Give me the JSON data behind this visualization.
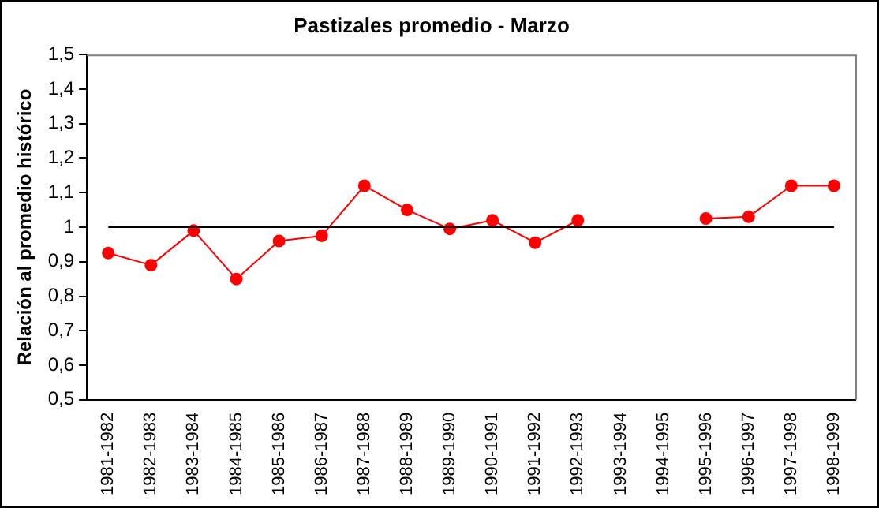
{
  "chart_data": {
    "type": "line",
    "title": "Pastizales promedio - Marzo",
    "ylabel": "Relación al promedio histórico",
    "categories": [
      "1981-1982",
      "1982-1983",
      "1983-1984",
      "1984-1985",
      "1985-1986",
      "1986-1987",
      "1987-1988",
      "1988-1989",
      "1989-1990",
      "1990-1991",
      "1991-1992",
      "1992-1993",
      "1993-1994",
      "1994-1995",
      "1995-1996",
      "1996-1997",
      "1997-1998",
      "1998-1999"
    ],
    "series": [
      {
        "color": "#ff0000",
        "values": [
          0.925,
          0.89,
          0.99,
          0.85,
          0.96,
          0.975,
          1.12,
          1.05,
          0.995,
          1.02,
          0.955,
          1.02,
          null,
          null,
          1.025,
          1.03,
          1.12,
          1.12
        ]
      }
    ],
    "ylim": [
      0.5,
      1.5
    ],
    "yticks": [
      {
        "value": 0.5,
        "label": "0,5"
      },
      {
        "value": 0.6,
        "label": "0,6"
      },
      {
        "value": 0.7,
        "label": "0,7"
      },
      {
        "value": 0.8,
        "label": "0,8"
      },
      {
        "value": 0.9,
        "label": "0,9"
      },
      1,
      {
        "value": 1.1,
        "label": "1,1"
      },
      {
        "value": 1.2,
        "label": "1,2"
      },
      {
        "value": 1.3,
        "label": "1,3"
      },
      {
        "value": 1.4,
        "label": "1,4"
      },
      {
        "value": 1.5,
        "label": "1,5"
      }
    ],
    "ref_lines": [
      {
        "axis": "y",
        "value": 1,
        "color": "#000000"
      }
    ],
    "marker": "circle",
    "line_style": "solid",
    "grid": false,
    "legend": false
  }
}
